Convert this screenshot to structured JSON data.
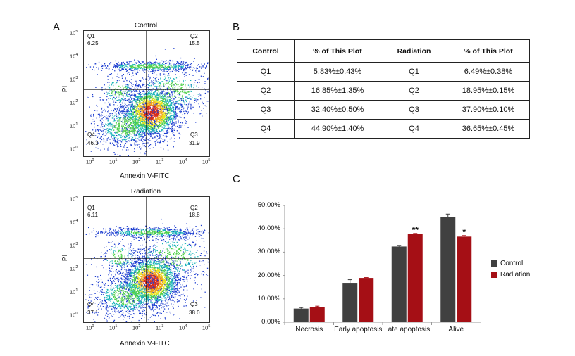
{
  "panel_labels": {
    "a": "A",
    "b": "B",
    "c": "C"
  },
  "flow_plots": [
    {
      "title": "Control",
      "quadrants": {
        "q1": {
          "name": "Q1",
          "value": "6.25"
        },
        "q2": {
          "name": "Q2",
          "value": "15.5"
        },
        "q3": {
          "name": "Q3",
          "value": "31.9"
        },
        "q4": {
          "name": "Q4",
          "value": "46.3"
        }
      },
      "xlabel": "Annexin V-FITC",
      "ylabel": "PI"
    },
    {
      "title": "Radiation",
      "quadrants": {
        "q1": {
          "name": "Q1",
          "value": "6.11"
        },
        "q2": {
          "name": "Q2",
          "value": "18.8"
        },
        "q3": {
          "name": "Q3",
          "value": "38.0"
        },
        "q4": {
          "name": "Q4",
          "value": "37.1"
        }
      },
      "xlabel": "Annexin V-FITC",
      "ylabel": "PI"
    }
  ],
  "axis_ticks": [
    "10",
    "10",
    "10",
    "10",
    "10",
    "10"
  ],
  "axis_tick_exponents": [
    "0",
    "1",
    "2",
    "3",
    "4",
    "5"
  ],
  "table": {
    "headers": [
      "Control",
      "% of This Plot",
      "Radiation",
      "% of This Plot"
    ],
    "rows": [
      [
        "Q1",
        "5.83%±0.43%",
        "Q1",
        "6.49%±0.38%"
      ],
      [
        "Q2",
        "16.85%±1.35%",
        "Q2",
        "18.95%±0.15%"
      ],
      [
        "Q3",
        "32.40%±0.50%",
        "Q3",
        "37.90%±0.10%"
      ],
      [
        "Q4",
        "44.90%±1.40%",
        "Q4",
        "36.65%±0.45%"
      ]
    ]
  },
  "chart_data": {
    "type": "bar",
    "categories": [
      "Necrosis",
      "Early apoptosis",
      "Late apoptosis",
      "Alive"
    ],
    "series": [
      {
        "name": "Control",
        "color": "#404040",
        "values": [
          5.83,
          16.85,
          32.4,
          44.9
        ],
        "errors": [
          0.43,
          1.35,
          0.5,
          1.4
        ]
      },
      {
        "name": "Radiation",
        "color": "#a50f15",
        "values": [
          6.49,
          18.95,
          37.9,
          36.65
        ],
        "errors": [
          0.38,
          0.15,
          0.1,
          0.45
        ]
      }
    ],
    "yticks": [
      "0.00%",
      "10.00%",
      "20.00%",
      "30.00%",
      "40.00%",
      "50.00%"
    ],
    "ylim": [
      0,
      50
    ],
    "significance": [
      {
        "category": "Late apoptosis",
        "label": "**"
      },
      {
        "category": "Alive",
        "label": "*"
      }
    ],
    "legend_position": "right"
  }
}
